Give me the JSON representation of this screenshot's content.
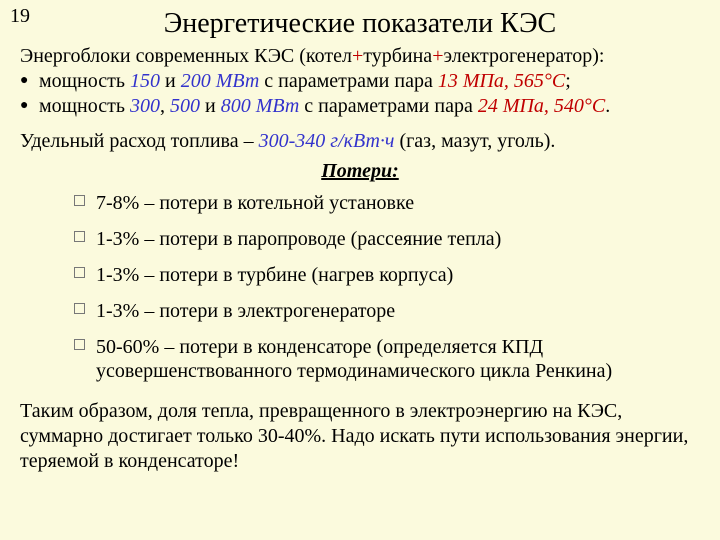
{
  "page_number": "19",
  "title": "Энергетические показатели КЭС",
  "intro_prefix": "Энергоблоки современных КЭС (котел",
  "intro_plus1": "+",
  "intro_mid1": "турбина",
  "intro_plus2": "+",
  "intro_mid2": "электрогенератор):",
  "b1": {
    "t1": "мощность ",
    "v1": "150",
    "t2": " и ",
    "v2": "200 МВт",
    "t3": " с параметрами пара ",
    "p1": "13 МПа, 565°С",
    "t4": ";"
  },
  "b2": {
    "t1": "мощность ",
    "v1": "300",
    "t2": ", ",
    "v2": "500",
    "t3": " и ",
    "v3": "800 МВт",
    "t4": " с параметрами пара ",
    "p1": "24 МПа, 540°С",
    "t5": "."
  },
  "fuel": {
    "t1": "Удельный расход топлива – ",
    "val": "300-340 г/кВт·ч",
    "t2": " (газ, мазут, уголь)."
  },
  "losses_heading": "Потери:",
  "losses": [
    "7-8% – потери в котельной установке",
    "1-3% – потери в паропроводе (рассеяние тепла)",
    "1-3% – потери в турбине (нагрев корпуса)",
    "1-3% – потери в электрогенераторе",
    "50-60% – потери в конденсаторе (определяется КПД усовершенствованного термодинамического цикла Ренкина)"
  ],
  "conclusion": "Таким образом, доля тепла, превращенного в электроэнергию на КЭС, суммарно достигает только 30-40%. Надо искать пути использования энергии, теряемой в конденсаторе!"
}
